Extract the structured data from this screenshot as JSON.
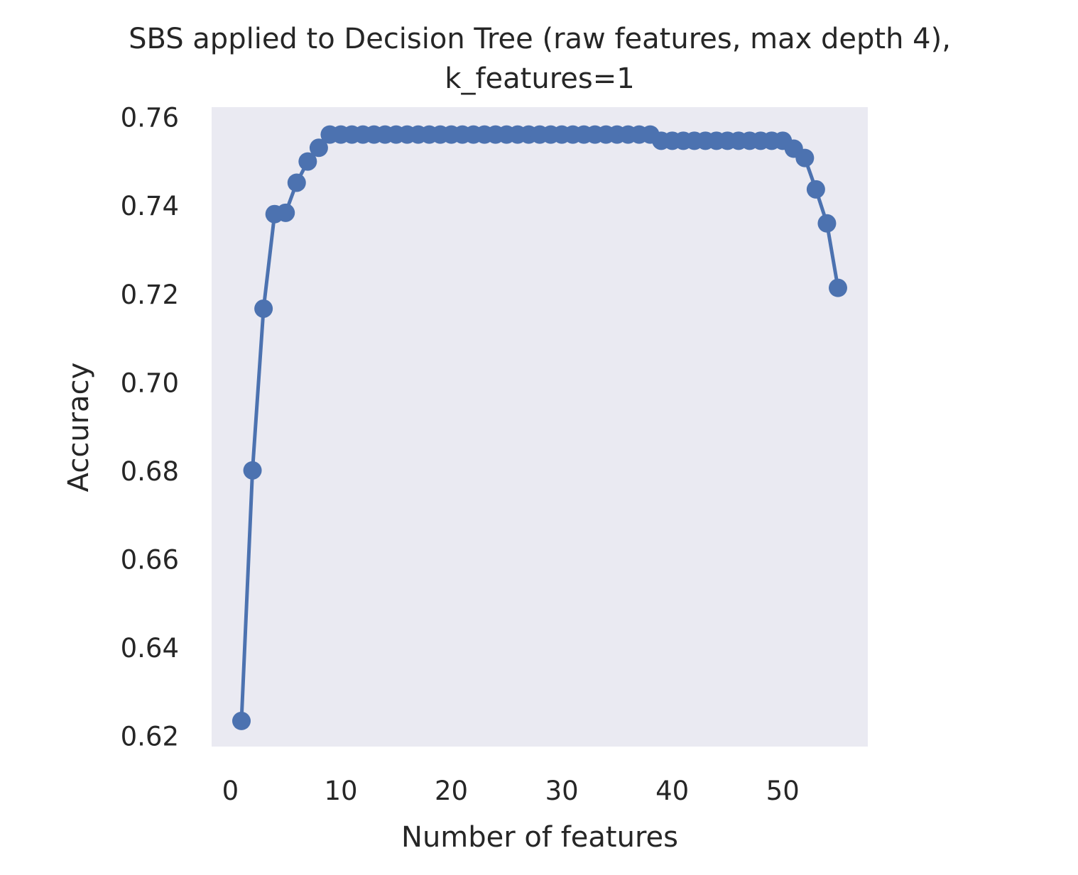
{
  "chart_data": {
    "type": "line",
    "title_line1": "SBS applied to Decision Tree (raw features, max depth 4),",
    "title_line2": "k_features=1",
    "xlabel": "Number of features",
    "ylabel": "Accuracy",
    "xlim": [
      -1.7,
      57.7
    ],
    "ylim": [
      0.6175,
      0.7622
    ],
    "x_ticks": [
      0,
      10,
      20,
      30,
      40,
      50
    ],
    "x_tick_labels": [
      "0",
      "10",
      "20",
      "30",
      "40",
      "50"
    ],
    "y_ticks": [
      0.62,
      0.64,
      0.66,
      0.68,
      0.7,
      0.72,
      0.74,
      0.76
    ],
    "y_tick_labels": [
      "0.62",
      "0.64",
      "0.66",
      "0.68",
      "0.70",
      "0.72",
      "0.74",
      "0.76"
    ],
    "grid": false,
    "colors": {
      "series": "#4c72b0",
      "plot_background": "#eaeaf2",
      "text": "#262626"
    },
    "series": [
      {
        "marker": "circle",
        "x": [
          1,
          2,
          3,
          4,
          5,
          6,
          7,
          8,
          9,
          10,
          11,
          12,
          13,
          14,
          15,
          16,
          17,
          18,
          19,
          20,
          21,
          22,
          23,
          24,
          25,
          26,
          27,
          28,
          29,
          30,
          31,
          32,
          33,
          34,
          35,
          36,
          37,
          38,
          39,
          40,
          41,
          42,
          43,
          44,
          45,
          46,
          47,
          48,
          49,
          50,
          51,
          52,
          53,
          54,
          55
        ],
        "y": [
          0.6233,
          0.68,
          0.7166,
          0.738,
          0.7383,
          0.7451,
          0.7499,
          0.753,
          0.756,
          0.756,
          0.756,
          0.756,
          0.756,
          0.756,
          0.756,
          0.756,
          0.756,
          0.756,
          0.756,
          0.756,
          0.756,
          0.756,
          0.756,
          0.756,
          0.756,
          0.756,
          0.756,
          0.756,
          0.756,
          0.756,
          0.756,
          0.756,
          0.756,
          0.756,
          0.756,
          0.756,
          0.756,
          0.756,
          0.7546,
          0.7546,
          0.7546,
          0.7546,
          0.7546,
          0.7546,
          0.7546,
          0.7546,
          0.7546,
          0.7546,
          0.7546,
          0.7546,
          0.7528,
          0.7507,
          0.7436,
          0.7359,
          0.7213
        ]
      }
    ]
  }
}
